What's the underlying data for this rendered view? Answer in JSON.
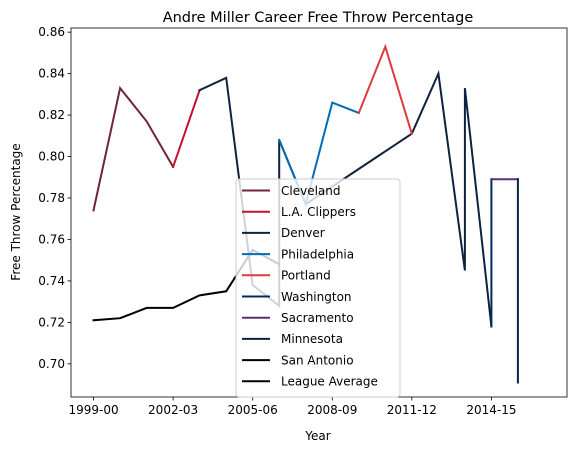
{
  "chart_data": {
    "type": "line",
    "title": "Andre Miller Career Free Throw Percentage",
    "xlabel": "Year",
    "ylabel": "Free Throw Percentage",
    "ylim": [
      0.684,
      0.862
    ],
    "xlim": [
      -0.85,
      17.85
    ],
    "xticks": [
      {
        "value": 0,
        "label": "1999-00"
      },
      {
        "value": 3,
        "label": "2002-03"
      },
      {
        "value": 6,
        "label": "2005-06"
      },
      {
        "value": 9,
        "label": "2008-09"
      },
      {
        "value": 12,
        "label": "2011-12"
      },
      {
        "value": 15,
        "label": "2014-15"
      }
    ],
    "yticks": [
      0.7,
      0.72,
      0.74,
      0.76,
      0.78,
      0.8,
      0.82,
      0.84,
      0.86
    ],
    "ytick_labels": [
      "0.70",
      "0.72",
      "0.74",
      "0.76",
      "0.78",
      "0.80",
      "0.82",
      "0.84",
      "0.86"
    ],
    "grid": false,
    "legend_position": "lower-center",
    "series": [
      {
        "name": "Cleveland",
        "color": "#6f263d",
        "x": [
          0,
          1,
          2,
          3
        ],
        "y": [
          0.774,
          0.833,
          0.817,
          0.795
        ]
      },
      {
        "name": "L.A. Clippers",
        "color": "#c8102e",
        "x": [
          3,
          4
        ],
        "y": [
          0.795,
          0.832
        ]
      },
      {
        "name": "Denver",
        "color": "#0e2240",
        "x": [
          4,
          5,
          6,
          7,
          7,
          8,
          12,
          13,
          14,
          14,
          15
        ],
        "y": [
          0.832,
          0.838,
          0.738,
          0.728,
          0.808,
          0.777,
          0.811,
          0.84,
          0.745,
          0.833,
          0.718
        ]
      },
      {
        "name": "Philadelphia",
        "color": "#006bb6",
        "x": [
          7,
          8,
          9,
          10
        ],
        "y": [
          0.808,
          0.777,
          0.826,
          0.821
        ]
      },
      {
        "name": "Portland",
        "color": "#e03a3e",
        "x": [
          10,
          11,
          12
        ],
        "y": [
          0.821,
          0.853,
          0.811
        ]
      },
      {
        "name": "Washington",
        "color": "#002b5c",
        "x": [
          15,
          15
        ],
        "y": [
          0.718,
          0.789
        ]
      },
      {
        "name": "Sacramento",
        "color": "#5a2d81",
        "x": [
          15,
          16
        ],
        "y": [
          0.789,
          0.789
        ]
      },
      {
        "name": "Minnesota",
        "color": "#0c2340",
        "x": [
          16,
          16
        ],
        "y": [
          0.789,
          0.691
        ]
      },
      {
        "name": "San Antonio",
        "color": "#000000",
        "x": [],
        "y": []
      },
      {
        "name": "League Average",
        "color": "#000000",
        "x": [
          0,
          1,
          2,
          3,
          4,
          5,
          6,
          7
        ],
        "y": [
          0.721,
          0.722,
          0.727,
          0.727,
          0.733,
          0.735,
          0.755,
          0.748
        ]
      }
    ]
  }
}
